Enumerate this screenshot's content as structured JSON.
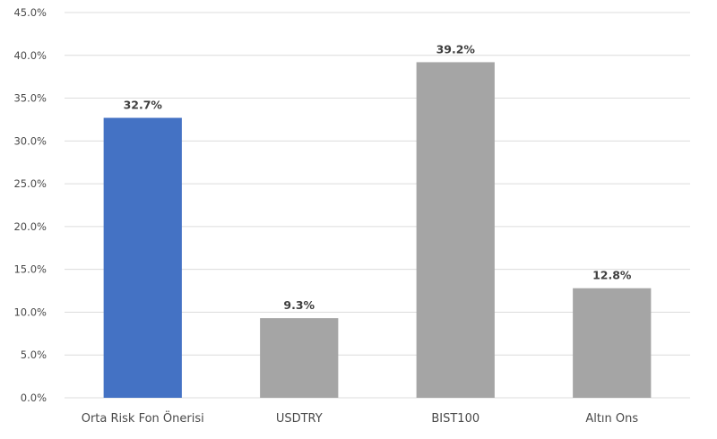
{
  "chart_data": {
    "type": "bar",
    "title": "",
    "xlabel": "",
    "ylabel": "",
    "categories": [
      "Orta Risk Fon Önerisi",
      "USDTRY",
      "BIST100",
      "Altın Ons"
    ],
    "values": [
      32.7,
      9.3,
      39.2,
      12.8
    ],
    "value_labels": [
      "32.7%",
      "9.3%",
      "39.2%",
      "12.8%"
    ],
    "bar_colors": [
      "#4472c4",
      "#a5a5a5",
      "#a5a5a5",
      "#a5a5a5"
    ],
    "ylim": [
      0,
      45
    ],
    "y_ticks": [
      0,
      5,
      10,
      15,
      20,
      25,
      30,
      35,
      40,
      45
    ],
    "y_tick_labels": [
      "0.0%",
      "5.0%",
      "10.0%",
      "15.0%",
      "20.0%",
      "25.0%",
      "30.0%",
      "35.0%",
      "40.0%",
      "45.0%"
    ],
    "grid": true,
    "legend": "none"
  }
}
